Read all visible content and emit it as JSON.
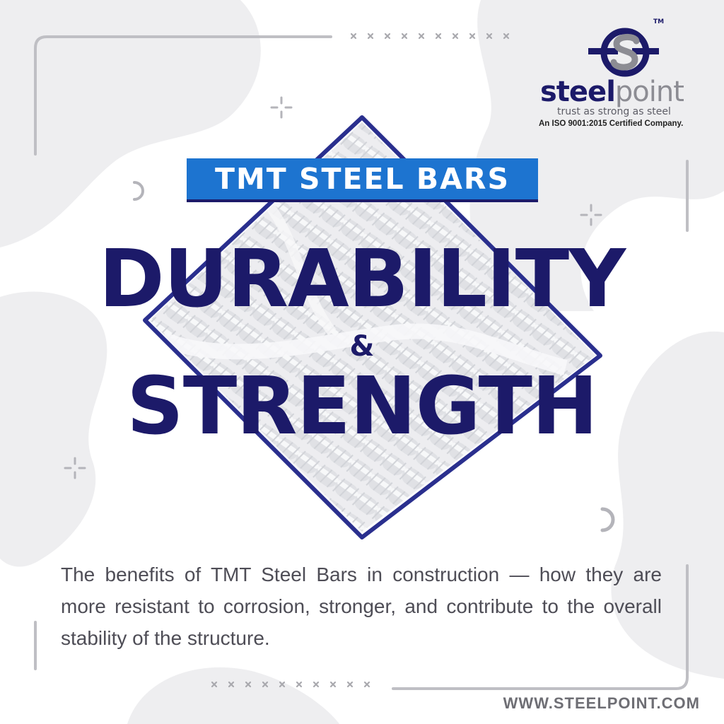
{
  "brand": {
    "logo_word_part1": "steel",
    "logo_word_part2": "point",
    "trademark": "TM",
    "tagline": "trust as strong as steel",
    "certification": "An ISO 9001:2015 Certified Company.",
    "colors": {
      "navy": "#1c1a69",
      "blue": "#1d74d0",
      "gray": "#8c8c93"
    }
  },
  "banner": {
    "label": "TMT STEEL BARS"
  },
  "headline": {
    "line1": "DURABILITY",
    "ampersand": "&",
    "line2": "STRENGTH"
  },
  "description": "The benefits of TMT Steel Bars in construction — how they are more resistant to corrosion, stronger, and contribute to the overall stability of the structure.",
  "footer": {
    "website": "WWW.STEELPOINT.COM"
  },
  "icons": [
    "steelpoint-logo-icon",
    "steel-bars-image",
    "sparkle-icon",
    "ring-icon"
  ]
}
